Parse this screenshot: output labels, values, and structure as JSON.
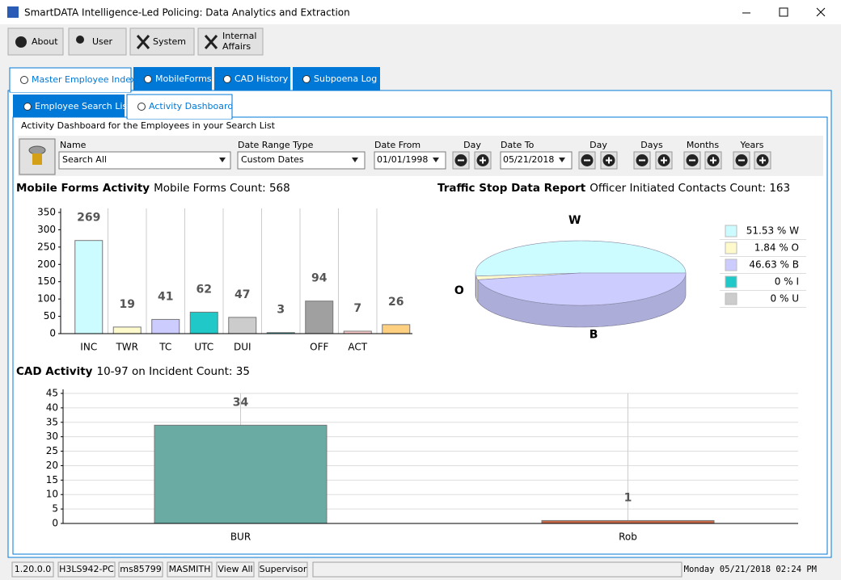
{
  "window": {
    "title": "SmartDATA Intelligence-Led Policing: Data Analytics and Extraction"
  },
  "toolbar": [
    "About",
    "User",
    "System",
    "Internal Affairs"
  ],
  "tabs": [
    "Master Employee Index",
    "MobileForms",
    "CAD History",
    "Subpoena Log"
  ],
  "subtabs": [
    "Employee Search List",
    "Activity Dashboard"
  ],
  "header": "Activity Dashboard for the Employees in your Search List",
  "filters": {
    "name_label": "Name",
    "name_value": "Search All",
    "range_label": "Date Range Type",
    "range_value": "Custom Dates",
    "from_label": "Date From",
    "from_value": "01/01/1998",
    "from_step": "Day",
    "to_label": "Date To",
    "to_value": "05/21/2018",
    "to_step": "Day",
    "days": "Days",
    "months": "Months",
    "years": "Years"
  },
  "chart_data": [
    {
      "type": "bar",
      "title": "Mobile Forms Activity",
      "subtitle": "Mobile Forms Count: 568",
      "categories": [
        "INC",
        "TWR",
        "TC",
        "UTC",
        "DUI",
        null,
        "OFF",
        "ACT",
        null
      ],
      "values": [
        269,
        19,
        41,
        62,
        47,
        3,
        94,
        7,
        26
      ],
      "colors": [
        "#ccfcff",
        "#fffacc",
        "#ccccff",
        "#20c8c8",
        "#cccccc",
        "#20c8c8",
        "#a0a0a0",
        "#ffcccc",
        "#ffd080"
      ],
      "ylim": [
        0,
        350
      ],
      "yticks": [
        0,
        50,
        100,
        150,
        200,
        250,
        300,
        350
      ],
      "grid": false
    },
    {
      "type": "pie",
      "title": "Traffic Stop Data Report",
      "subtitle": "Officer Initiated Contacts Count: 163",
      "categories": [
        "W",
        "O",
        "B",
        "I",
        "U"
      ],
      "values": [
        51.53,
        1.84,
        46.63,
        0,
        0
      ],
      "value_labels": [
        "51.53 % W",
        "1.84 % O",
        "46.63 % B",
        "0 % I",
        "0 % U"
      ],
      "colors": [
        "#ccfcff",
        "#fffacc",
        "#ccccff",
        "#20c8c8",
        "#cccccc"
      ],
      "legend": "right"
    },
    {
      "type": "bar",
      "title": "CAD Activity",
      "subtitle": "10-97 on Incident Count: 35",
      "categories": [
        "BUR",
        "Rob"
      ],
      "values": [
        34,
        1
      ],
      "colors": [
        "#6aaca4",
        "#c8694a"
      ],
      "ylim": [
        0,
        45
      ],
      "yticks": [
        0,
        5,
        10,
        15,
        20,
        25,
        30,
        35,
        40,
        45
      ],
      "grid": true
    }
  ],
  "status": [
    "1.20.0.0",
    "H3LS942-PC",
    "ms85799",
    "MASMITH",
    "View All",
    "Supervisor"
  ],
  "clock": "Monday 05/21/2018 02:24 PM"
}
